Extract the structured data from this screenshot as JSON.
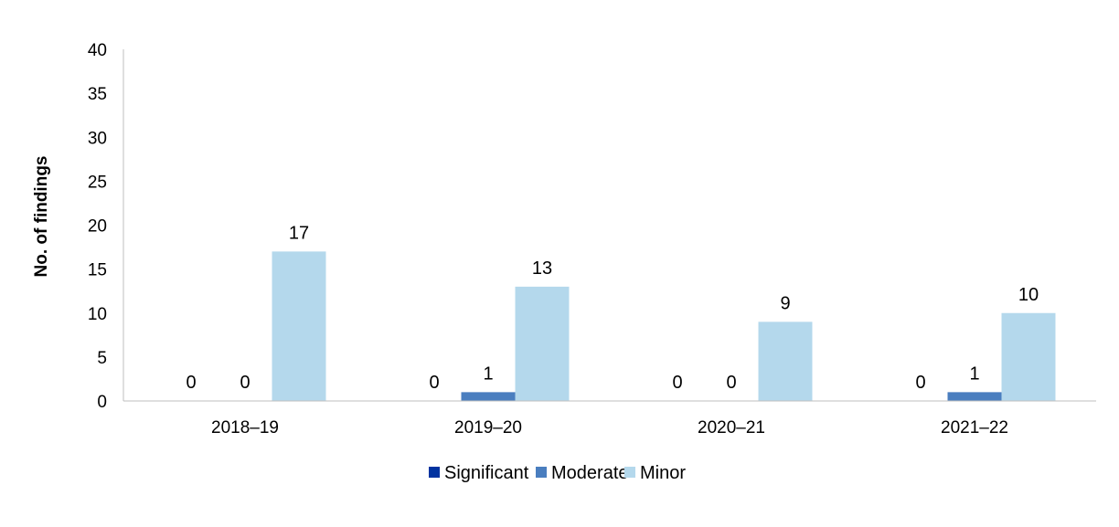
{
  "chart_data": {
    "type": "bar",
    "title": "",
    "xlabel": "",
    "ylabel": "No. of findings",
    "ylim": [
      0,
      40
    ],
    "yticks": [
      0,
      5,
      10,
      15,
      20,
      25,
      30,
      35,
      40
    ],
    "grid": false,
    "legend_position": "bottom",
    "categories": [
      "2018–19",
      "2019–20",
      "2020–21",
      "2021–22"
    ],
    "series": [
      {
        "name": "Significant",
        "color": "#0033a0",
        "values": [
          0,
          0,
          0,
          0
        ]
      },
      {
        "name": "Moderate",
        "color": "#4a7ebf",
        "values": [
          0,
          1,
          0,
          1
        ]
      },
      {
        "name": "Minor",
        "color": "#b4d8ec",
        "values": [
          17,
          13,
          9,
          10
        ]
      }
    ]
  }
}
